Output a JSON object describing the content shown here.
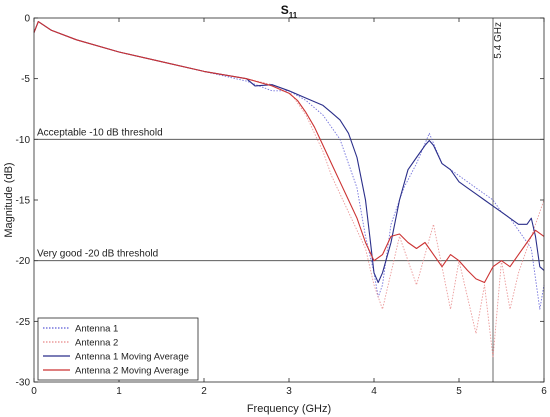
{
  "chart_data": {
    "type": "line",
    "title": "S",
    "title_sub": "11",
    "xlabel": "Frequency (GHz)",
    "ylabel": "Magnitude (dB)",
    "xlim": [
      0,
      6
    ],
    "ylim": [
      -30,
      0
    ],
    "xticks": [
      0,
      1,
      2,
      3,
      4,
      5,
      6
    ],
    "yticks": [
      0,
      -5,
      -10,
      -15,
      -20,
      -25,
      -30
    ],
    "xtick_labels": [
      "0",
      "1",
      "2",
      "3",
      "4",
      "5",
      "6"
    ],
    "ytick_labels": [
      "0",
      "-5",
      "-10",
      "-15",
      "-20",
      "-25",
      "-30"
    ],
    "grid": false,
    "legend_position": "bottom-left",
    "hlines": [
      {
        "y": -10,
        "label": "Acceptable -10 dB threshold"
      },
      {
        "y": -20,
        "label": "Very good -20 dB threshold"
      }
    ],
    "vlines": [
      {
        "x": 5.4,
        "label": "5.4 GHz"
      }
    ],
    "series": [
      {
        "name": "Antenna 1",
        "color": "#5b5bd6",
        "style": "dotted",
        "x": [
          0,
          0.05,
          0.2,
          0.5,
          1.0,
          1.5,
          2.0,
          2.5,
          2.8,
          3.0,
          3.2,
          3.4,
          3.6,
          3.8,
          3.9,
          4.0,
          4.05,
          4.1,
          4.2,
          4.35,
          4.5,
          4.65,
          4.8,
          5.0,
          5.2,
          5.4,
          5.5,
          5.6,
          5.75,
          5.85,
          5.95,
          6.0
        ],
        "y": [
          -1.2,
          -0.3,
          -1.0,
          -1.8,
          -2.8,
          -3.6,
          -4.4,
          -5.2,
          -6.0,
          -6.0,
          -6.8,
          -8.0,
          -10.0,
          -14.0,
          -18.0,
          -21.0,
          -23.0,
          -22.0,
          -17.0,
          -14.0,
          -12.0,
          -9.5,
          -12.0,
          -13.0,
          -14.0,
          -15.0,
          -16.0,
          -16.5,
          -18.0,
          -19.0,
          -24.0,
          -22.0
        ]
      },
      {
        "name": "Antenna 2",
        "color": "#e88888",
        "style": "dotted",
        "x": [
          0,
          0.05,
          0.2,
          0.5,
          1.0,
          1.5,
          2.0,
          2.5,
          2.8,
          3.0,
          3.2,
          3.4,
          3.5,
          3.7,
          3.9,
          4.0,
          4.1,
          4.3,
          4.5,
          4.7,
          4.9,
          5.0,
          5.2,
          5.3,
          5.4,
          5.5,
          5.6,
          5.7,
          5.8,
          5.9,
          6.0
        ],
        "y": [
          -1.2,
          -0.3,
          -1.0,
          -1.8,
          -2.8,
          -3.6,
          -4.4,
          -5.0,
          -5.5,
          -6.0,
          -8.0,
          -11.0,
          -13.0,
          -16.0,
          -19.0,
          -22.0,
          -24.0,
          -18.0,
          -22.0,
          -17.0,
          -24.0,
          -20.0,
          -26.0,
          -22.0,
          -28.0,
          -20.0,
          -24.0,
          -21.0,
          -19.0,
          -17.0,
          -15.0
        ]
      },
      {
        "name": "Antenna 1 Moving Average",
        "color": "#2b2f8a",
        "style": "solid",
        "x": [
          0,
          0.05,
          0.2,
          0.5,
          1.0,
          1.5,
          2.0,
          2.5,
          2.6,
          2.8,
          3.0,
          3.2,
          3.4,
          3.5,
          3.6,
          3.7,
          3.8,
          3.9,
          3.95,
          4.0,
          4.05,
          4.1,
          4.2,
          4.3,
          4.4,
          4.5,
          4.6,
          4.65,
          4.7,
          4.8,
          4.9,
          5.0,
          5.1,
          5.2,
          5.3,
          5.4,
          5.5,
          5.6,
          5.7,
          5.8,
          5.85,
          5.9,
          5.95,
          6.0
        ],
        "y": [
          -1.2,
          -0.3,
          -1.0,
          -1.8,
          -2.8,
          -3.6,
          -4.4,
          -5.0,
          -5.6,
          -5.5,
          -6.0,
          -6.6,
          -7.2,
          -7.8,
          -8.4,
          -9.5,
          -11.5,
          -15.0,
          -18.0,
          -21.0,
          -21.8,
          -21.0,
          -18.5,
          -15.0,
          -12.5,
          -11.5,
          -10.5,
          -10.1,
          -10.5,
          -12.0,
          -12.5,
          -13.5,
          -14.0,
          -14.5,
          -15.0,
          -15.5,
          -16.0,
          -16.5,
          -17.0,
          -17.0,
          -16.5,
          -18.0,
          -20.5,
          -20.8
        ]
      },
      {
        "name": "Antenna 2 Moving Average",
        "color": "#cc3333",
        "style": "solid",
        "x": [
          0,
          0.05,
          0.2,
          0.5,
          1.0,
          1.5,
          2.0,
          2.5,
          2.8,
          3.0,
          3.1,
          3.2,
          3.3,
          3.4,
          3.5,
          3.6,
          3.7,
          3.8,
          3.9,
          4.0,
          4.1,
          4.2,
          4.3,
          4.4,
          4.5,
          4.6,
          4.7,
          4.8,
          4.9,
          5.0,
          5.1,
          5.2,
          5.3,
          5.4,
          5.5,
          5.6,
          5.7,
          5.8,
          5.9,
          6.0
        ],
        "y": [
          -1.2,
          -0.3,
          -1.0,
          -1.8,
          -2.8,
          -3.6,
          -4.4,
          -5.0,
          -5.6,
          -6.2,
          -6.8,
          -7.8,
          -9.0,
          -10.5,
          -12.0,
          -13.5,
          -15.0,
          -16.5,
          -18.5,
          -20.0,
          -19.5,
          -18.0,
          -17.8,
          -18.5,
          -19.0,
          -18.5,
          -19.5,
          -20.5,
          -19.5,
          -20.0,
          -20.8,
          -21.5,
          -21.8,
          -20.5,
          -20.0,
          -20.5,
          -19.5,
          -18.5,
          -17.5,
          -18.0
        ]
      }
    ]
  }
}
